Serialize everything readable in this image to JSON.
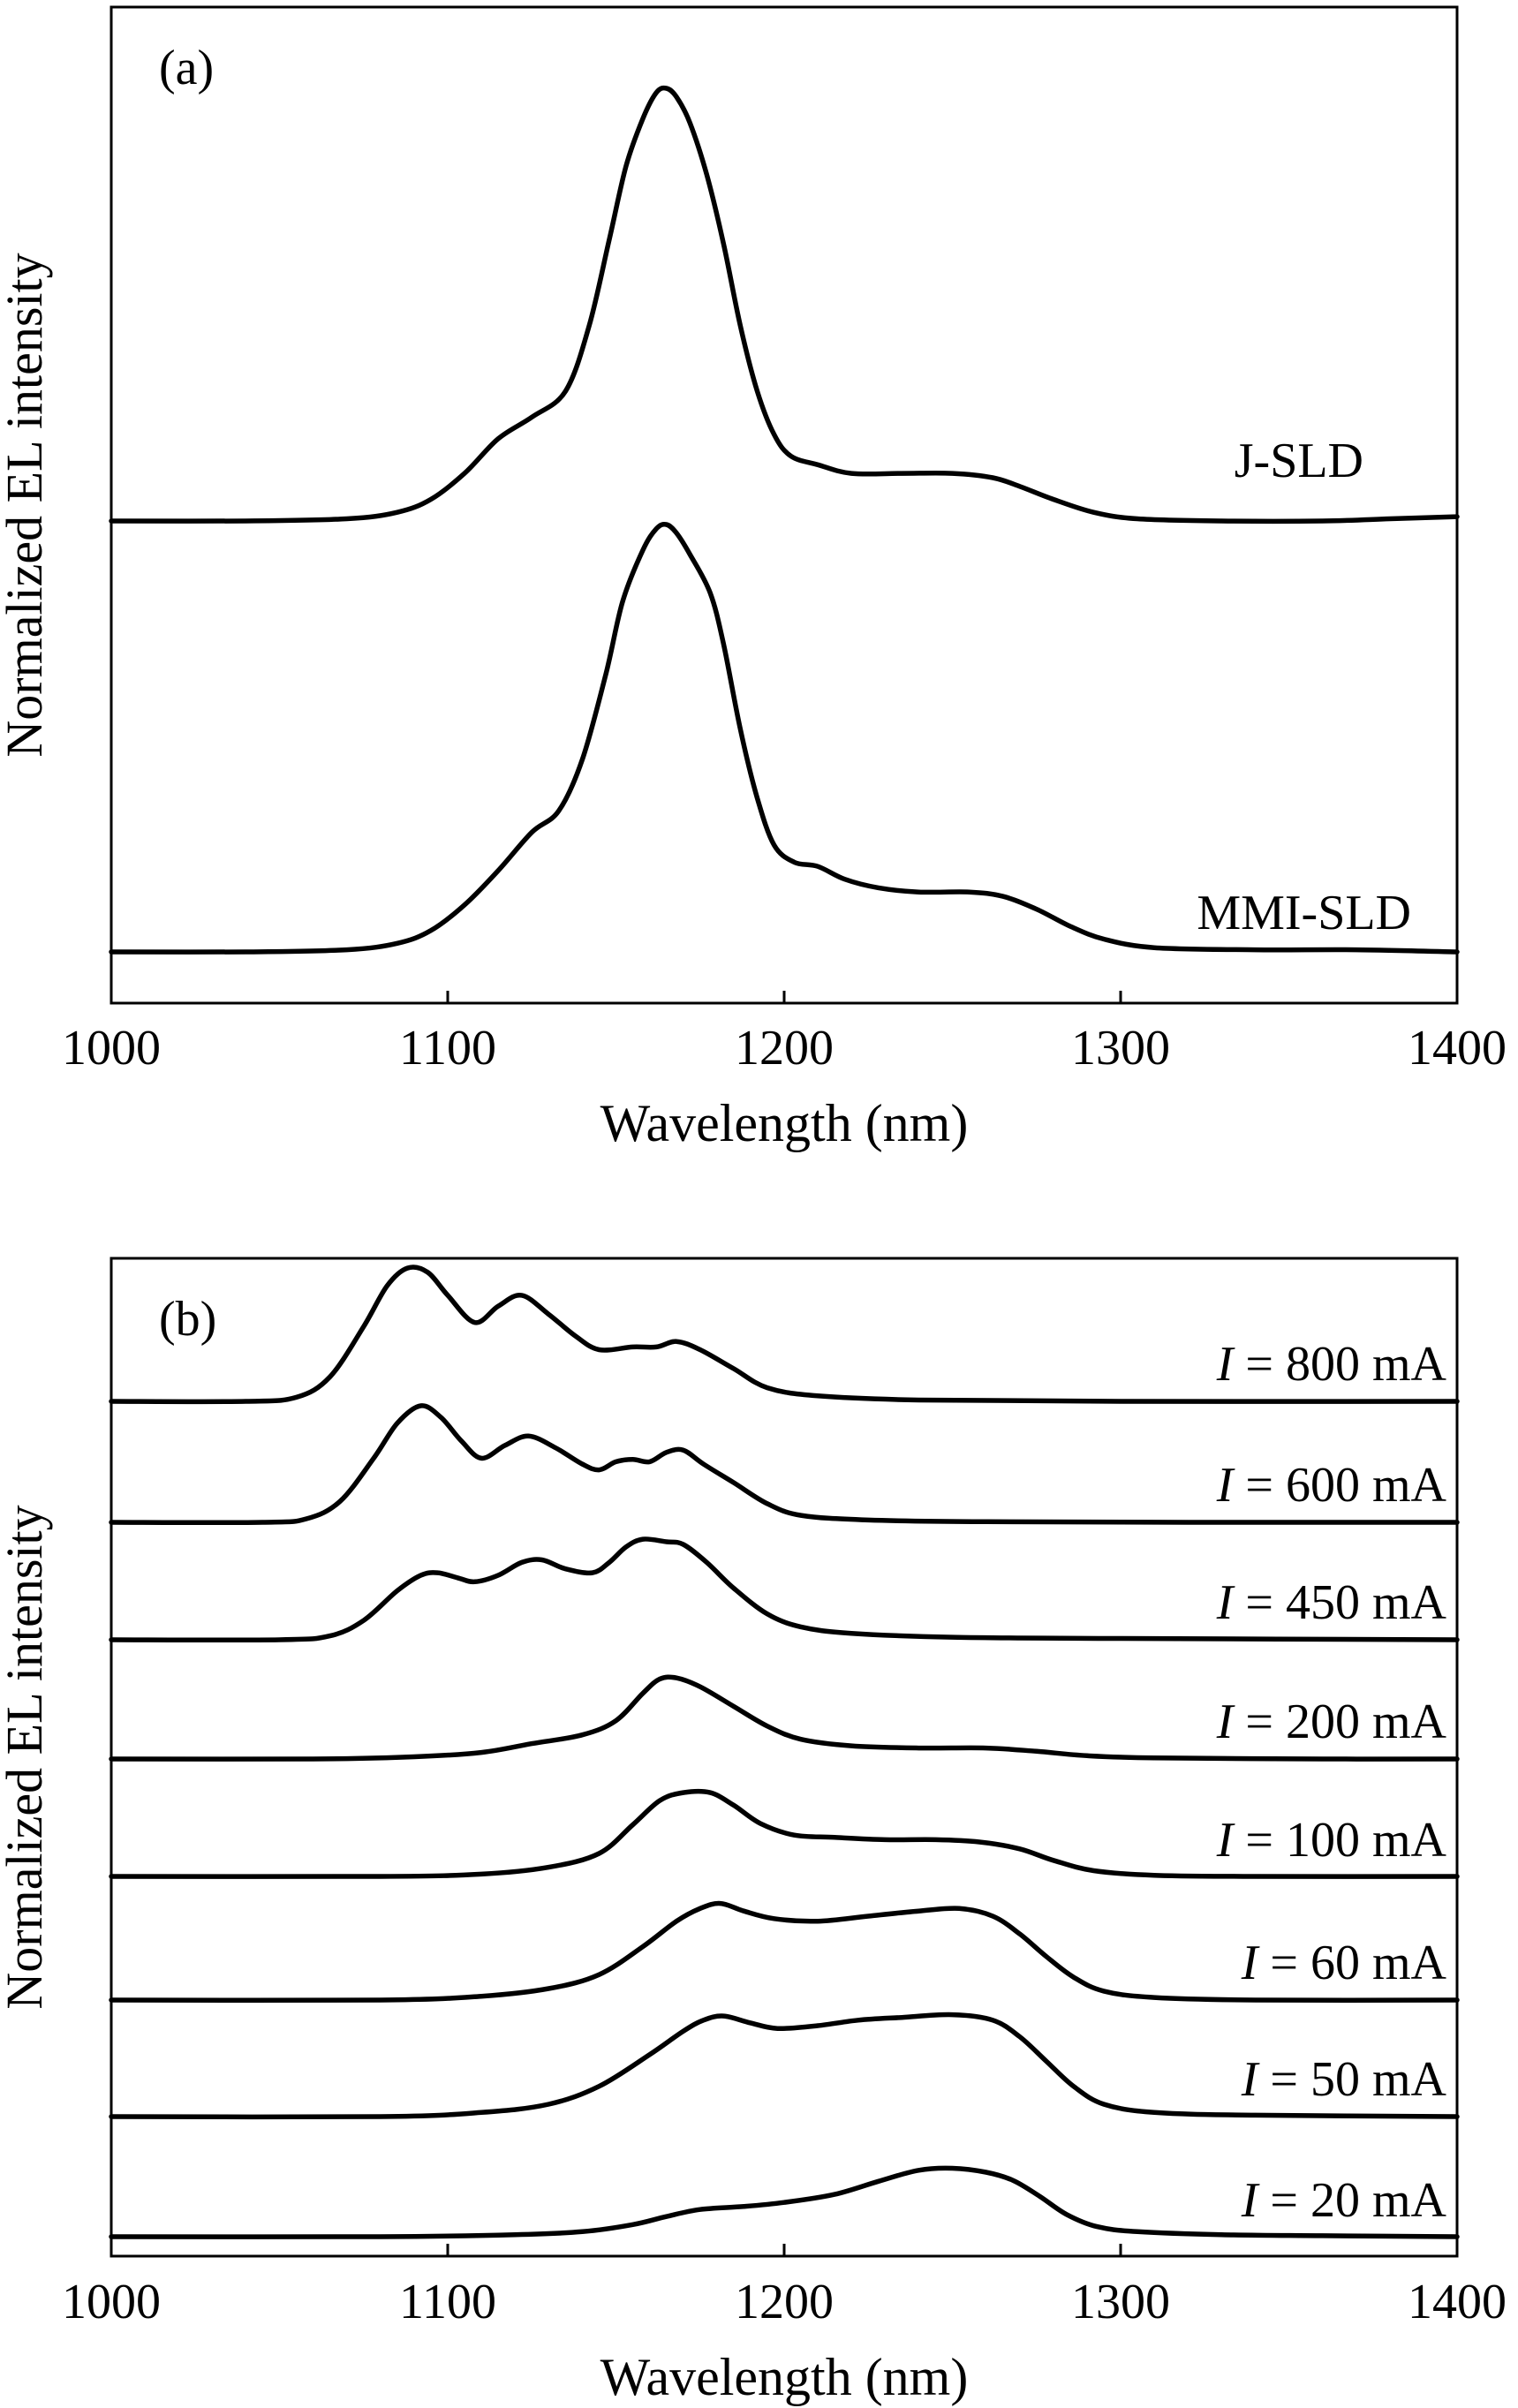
{
  "chart_data": [
    {
      "type": "line",
      "panel_label": "(a)",
      "xlabel": "Wavelength (nm)",
      "ylabel": "Normalized EL intensity",
      "xlim": [
        1000,
        1400
      ],
      "xticks": [
        "1000",
        "1100",
        "1200",
        "1300",
        "1400"
      ],
      "y_ticks_shown": false,
      "series": [
        {
          "name": "J-SLD",
          "points": [
            [
              1000,
              0.0
            ],
            [
              1040,
              0.0
            ],
            [
              1070,
              0.005
            ],
            [
              1085,
              0.02
            ],
            [
              1095,
              0.05
            ],
            [
              1105,
              0.11
            ],
            [
              1115,
              0.19
            ],
            [
              1125,
              0.24
            ],
            [
              1135,
              0.3
            ],
            [
              1142,
              0.45
            ],
            [
              1148,
              0.65
            ],
            [
              1153,
              0.82
            ],
            [
              1158,
              0.93
            ],
            [
              1162,
              0.99
            ],
            [
              1165,
              1.0
            ],
            [
              1168,
              0.98
            ],
            [
              1172,
              0.92
            ],
            [
              1177,
              0.8
            ],
            [
              1182,
              0.64
            ],
            [
              1187,
              0.45
            ],
            [
              1192,
              0.3
            ],
            [
              1197,
              0.2
            ],
            [
              1202,
              0.15
            ],
            [
              1210,
              0.13
            ],
            [
              1220,
              0.11
            ],
            [
              1235,
              0.11
            ],
            [
              1250,
              0.11
            ],
            [
              1262,
              0.1
            ],
            [
              1270,
              0.08
            ],
            [
              1280,
              0.05
            ],
            [
              1292,
              0.02
            ],
            [
              1305,
              0.005
            ],
            [
              1330,
              0.0
            ],
            [
              1360,
              0.0
            ],
            [
              1380,
              0.005
            ],
            [
              1400,
              0.01
            ]
          ]
        },
        {
          "name": "MMI-SLD",
          "points": [
            [
              1000,
              0.0
            ],
            [
              1040,
              0.0
            ],
            [
              1070,
              0.005
            ],
            [
              1085,
              0.02
            ],
            [
              1095,
              0.05
            ],
            [
              1105,
              0.11
            ],
            [
              1115,
              0.19
            ],
            [
              1125,
              0.28
            ],
            [
              1133,
              0.33
            ],
            [
              1140,
              0.45
            ],
            [
              1147,
              0.65
            ],
            [
              1152,
              0.82
            ],
            [
              1158,
              0.94
            ],
            [
              1162,
              0.99
            ],
            [
              1165,
              1.0
            ],
            [
              1168,
              0.98
            ],
            [
              1172,
              0.93
            ],
            [
              1178,
              0.84
            ],
            [
              1182,
              0.72
            ],
            [
              1187,
              0.52
            ],
            [
              1192,
              0.36
            ],
            [
              1197,
              0.25
            ],
            [
              1203,
              0.21
            ],
            [
              1210,
              0.2
            ],
            [
              1218,
              0.17
            ],
            [
              1228,
              0.15
            ],
            [
              1240,
              0.14
            ],
            [
              1255,
              0.14
            ],
            [
              1265,
              0.13
            ],
            [
              1275,
              0.1
            ],
            [
              1285,
              0.06
            ],
            [
              1295,
              0.03
            ],
            [
              1310,
              0.01
            ],
            [
              1340,
              0.005
            ],
            [
              1370,
              0.005
            ],
            [
              1400,
              0.0
            ]
          ]
        }
      ]
    },
    {
      "type": "line",
      "panel_label": "(b)",
      "xlabel": "Wavelength (nm)",
      "ylabel": "Normalized EL intensity",
      "xlim": [
        1000,
        1400
      ],
      "xticks": [
        "1000",
        "1100",
        "1200",
        "1300",
        "1400"
      ],
      "y_ticks_shown": false,
      "series": [
        {
          "name": "I = 800 mA",
          "label_var": "I",
          "label_value": "= 800 mA",
          "points": [
            [
              1000,
              0.0
            ],
            [
              1040,
              0.0
            ],
            [
              1055,
              0.03
            ],
            [
              1065,
              0.18
            ],
            [
              1075,
              0.55
            ],
            [
              1082,
              0.85
            ],
            [
              1088,
              0.98
            ],
            [
              1094,
              0.95
            ],
            [
              1100,
              0.78
            ],
            [
              1108,
              0.58
            ],
            [
              1115,
              0.7
            ],
            [
              1122,
              0.78
            ],
            [
              1130,
              0.64
            ],
            [
              1138,
              0.48
            ],
            [
              1145,
              0.38
            ],
            [
              1155,
              0.4
            ],
            [
              1162,
              0.4
            ],
            [
              1168,
              0.44
            ],
            [
              1175,
              0.38
            ],
            [
              1185,
              0.24
            ],
            [
              1195,
              0.1
            ],
            [
              1210,
              0.04
            ],
            [
              1240,
              0.01
            ],
            [
              1300,
              0.0
            ],
            [
              1400,
              0.0
            ]
          ]
        },
        {
          "name": "I = 600 mA",
          "label_var": "I",
          "label_value": "= 600 mA",
          "points": [
            [
              1000,
              0.0
            ],
            [
              1045,
              0.0
            ],
            [
              1058,
              0.03
            ],
            [
              1068,
              0.18
            ],
            [
              1078,
              0.55
            ],
            [
              1085,
              0.85
            ],
            [
              1092,
              1.0
            ],
            [
              1098,
              0.9
            ],
            [
              1104,
              0.7
            ],
            [
              1110,
              0.55
            ],
            [
              1117,
              0.66
            ],
            [
              1124,
              0.74
            ],
            [
              1132,
              0.64
            ],
            [
              1140,
              0.5
            ],
            [
              1145,
              0.45
            ],
            [
              1150,
              0.52
            ],
            [
              1155,
              0.54
            ],
            [
              1160,
              0.52
            ],
            [
              1165,
              0.6
            ],
            [
              1170,
              0.62
            ],
            [
              1176,
              0.5
            ],
            [
              1185,
              0.34
            ],
            [
              1195,
              0.16
            ],
            [
              1205,
              0.06
            ],
            [
              1225,
              0.02
            ],
            [
              1260,
              0.005
            ],
            [
              1320,
              0.0
            ],
            [
              1400,
              0.0
            ]
          ]
        },
        {
          "name": "I = 450 mA",
          "label_var": "I",
          "label_value": "= 450 mA",
          "points": [
            [
              1000,
              0.0
            ],
            [
              1050,
              0.0
            ],
            [
              1065,
              0.03
            ],
            [
              1075,
              0.15
            ],
            [
              1085,
              0.38
            ],
            [
              1092,
              0.5
            ],
            [
              1097,
              0.52
            ],
            [
              1103,
              0.48
            ],
            [
              1108,
              0.45
            ],
            [
              1115,
              0.5
            ],
            [
              1122,
              0.6
            ],
            [
              1128,
              0.62
            ],
            [
              1135,
              0.55
            ],
            [
              1143,
              0.52
            ],
            [
              1148,
              0.6
            ],
            [
              1153,
              0.72
            ],
            [
              1158,
              0.78
            ],
            [
              1165,
              0.76
            ],
            [
              1170,
              0.74
            ],
            [
              1177,
              0.6
            ],
            [
              1185,
              0.4
            ],
            [
              1195,
              0.2
            ],
            [
              1205,
              0.1
            ],
            [
              1220,
              0.05
            ],
            [
              1250,
              0.02
            ],
            [
              1300,
              0.01
            ],
            [
              1400,
              0.0
            ]
          ]
        },
        {
          "name": "I = 200 mA",
          "label_var": "I",
          "label_value": "= 200 mA",
          "points": [
            [
              1000,
              0.0
            ],
            [
              1060,
              0.0
            ],
            [
              1090,
              0.02
            ],
            [
              1110,
              0.06
            ],
            [
              1125,
              0.14
            ],
            [
              1140,
              0.22
            ],
            [
              1150,
              0.35
            ],
            [
              1158,
              0.6
            ],
            [
              1163,
              0.73
            ],
            [
              1168,
              0.74
            ],
            [
              1175,
              0.66
            ],
            [
              1185,
              0.48
            ],
            [
              1195,
              0.3
            ],
            [
              1205,
              0.18
            ],
            [
              1220,
              0.12
            ],
            [
              1240,
              0.1
            ],
            [
              1260,
              0.1
            ],
            [
              1275,
              0.07
            ],
            [
              1290,
              0.03
            ],
            [
              1310,
              0.01
            ],
            [
              1360,
              0.0
            ],
            [
              1400,
              0.0
            ]
          ]
        },
        {
          "name": "I = 100 mA",
          "label_var": "I",
          "label_value": "= 100 mA",
          "points": [
            [
              1000,
              0.0
            ],
            [
              1080,
              0.0
            ],
            [
              1110,
              0.02
            ],
            [
              1130,
              0.08
            ],
            [
              1145,
              0.2
            ],
            [
              1155,
              0.45
            ],
            [
              1163,
              0.66
            ],
            [
              1170,
              0.73
            ],
            [
              1178,
              0.73
            ],
            [
              1185,
              0.62
            ],
            [
              1193,
              0.46
            ],
            [
              1203,
              0.36
            ],
            [
              1215,
              0.34
            ],
            [
              1230,
              0.32
            ],
            [
              1245,
              0.32
            ],
            [
              1258,
              0.3
            ],
            [
              1270,
              0.24
            ],
            [
              1280,
              0.14
            ],
            [
              1292,
              0.05
            ],
            [
              1310,
              0.01
            ],
            [
              1340,
              0.0
            ],
            [
              1400,
              0.0
            ]
          ]
        },
        {
          "name": "I = 60 mA",
          "label_var": "I",
          "label_value": "= 60 mA",
          "points": [
            [
              1000,
              0.0
            ],
            [
              1080,
              0.0
            ],
            [
              1110,
              0.03
            ],
            [
              1130,
              0.09
            ],
            [
              1145,
              0.2
            ],
            [
              1158,
              0.42
            ],
            [
              1168,
              0.62
            ],
            [
              1175,
              0.72
            ],
            [
              1181,
              0.76
            ],
            [
              1188,
              0.7
            ],
            [
              1197,
              0.64
            ],
            [
              1210,
              0.62
            ],
            [
              1225,
              0.66
            ],
            [
              1240,
              0.7
            ],
            [
              1252,
              0.72
            ],
            [
              1262,
              0.66
            ],
            [
              1270,
              0.52
            ],
            [
              1278,
              0.34
            ],
            [
              1286,
              0.18
            ],
            [
              1295,
              0.07
            ],
            [
              1310,
              0.02
            ],
            [
              1340,
              0.0
            ],
            [
              1400,
              0.0
            ]
          ]
        },
        {
          "name": "I = 50 mA",
          "label_var": "I",
          "label_value": "= 50 mA",
          "points": [
            [
              1000,
              0.0
            ],
            [
              1080,
              0.0
            ],
            [
              1110,
              0.03
            ],
            [
              1130,
              0.09
            ],
            [
              1145,
              0.22
            ],
            [
              1160,
              0.45
            ],
            [
              1170,
              0.62
            ],
            [
              1176,
              0.7
            ],
            [
              1182,
              0.73
            ],
            [
              1190,
              0.68
            ],
            [
              1198,
              0.64
            ],
            [
              1210,
              0.66
            ],
            [
              1222,
              0.7
            ],
            [
              1235,
              0.72
            ],
            [
              1250,
              0.74
            ],
            [
              1262,
              0.7
            ],
            [
              1270,
              0.58
            ],
            [
              1278,
              0.4
            ],
            [
              1286,
              0.22
            ],
            [
              1295,
              0.09
            ],
            [
              1310,
              0.03
            ],
            [
              1340,
              0.01
            ],
            [
              1400,
              0.0
            ]
          ]
        },
        {
          "name": "I = 20 mA",
          "label_var": "I",
          "label_value": "= 20 mA",
          "points": [
            [
              1000,
              0.0
            ],
            [
              1080,
              0.0
            ],
            [
              1120,
              0.02
            ],
            [
              1140,
              0.05
            ],
            [
              1155,
              0.12
            ],
            [
              1165,
              0.2
            ],
            [
              1175,
              0.27
            ],
            [
              1188,
              0.3
            ],
            [
              1200,
              0.34
            ],
            [
              1215,
              0.42
            ],
            [
              1228,
              0.55
            ],
            [
              1240,
              0.66
            ],
            [
              1250,
              0.68
            ],
            [
              1260,
              0.64
            ],
            [
              1268,
              0.56
            ],
            [
              1276,
              0.4
            ],
            [
              1284,
              0.22
            ],
            [
              1293,
              0.1
            ],
            [
              1305,
              0.05
            ],
            [
              1330,
              0.02
            ],
            [
              1360,
              0.01
            ],
            [
              1400,
              0.0
            ]
          ]
        }
      ]
    }
  ]
}
